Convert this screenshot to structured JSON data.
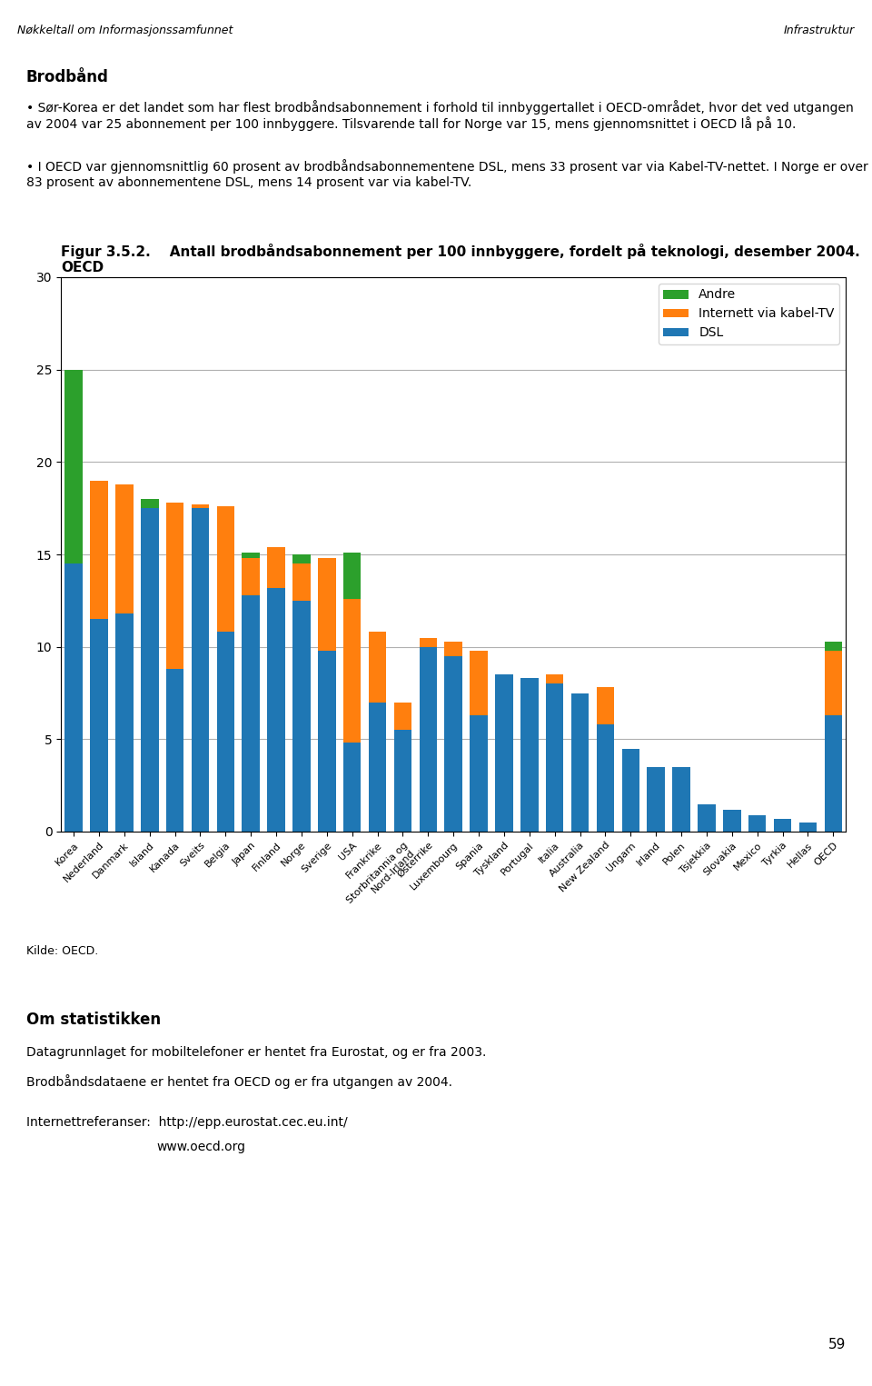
{
  "chart_data": {
    "type": "bar",
    "stacked": true,
    "title": "Figur 3.5.2.    Antall brodbåndsabonnement per 100 innbyggere, fordelt på teknologi, desember 2004.\nOECD",
    "categories": [
      "Korea",
      "Nederland",
      "Danmark",
      "Island",
      "Kanada",
      "Sveits",
      "Belgia",
      "Japan",
      "Finland",
      "Norge",
      "Sverige",
      "USA",
      "Frankrike",
      "Storbritannia og\nNord-Irland",
      "Østerrike",
      "Luxembourg",
      "Spania",
      "Tyskland",
      "Portugal",
      "Italia",
      "Australia",
      "New Zealand",
      "Ungarn",
      "Irland",
      "Polen",
      "Tsjekkia",
      "Slovakia",
      "Mexico",
      "Tyrkia",
      "Hellas",
      "OECD"
    ],
    "series": [
      {
        "name": "DSL",
        "values": [
          14.5,
          11.5,
          11.8,
          17.5,
          8.8,
          17.5,
          10.8,
          12.8,
          13.2,
          12.5,
          9.8,
          4.8,
          7.0,
          5.5,
          10.0,
          9.5,
          6.3,
          8.5,
          8.3,
          8.0,
          7.5,
          5.8,
          4.5,
          3.5,
          3.5,
          1.5,
          1.2,
          0.9,
          0.7,
          0.5,
          6.3
        ]
      },
      {
        "name": "Internett via kabel-TV",
        "values": [
          0.0,
          7.5,
          7.0,
          0.0,
          9.0,
          0.2,
          6.8,
          2.0,
          2.2,
          2.0,
          5.0,
          7.8,
          3.8,
          1.5,
          0.5,
          0.8,
          3.5,
          0.0,
          0.0,
          0.5,
          0.0,
          2.0,
          0.0,
          0.0,
          0.0,
          0.0,
          0.0,
          0.0,
          0.0,
          0.0,
          3.5
        ]
      },
      {
        "name": "Andre",
        "values": [
          10.5,
          0.0,
          0.0,
          0.5,
          0.0,
          0.0,
          0.0,
          0.3,
          0.0,
          0.5,
          0.0,
          2.5,
          0.0,
          0.0,
          0.0,
          0.0,
          0.0,
          0.0,
          0.0,
          0.0,
          0.0,
          0.0,
          0.0,
          0.0,
          0.0,
          0.0,
          0.0,
          0.0,
          0.0,
          0.0,
          0.5
        ]
      }
    ],
    "ylim": [
      0,
      30
    ],
    "yticks": [
      0,
      5,
      10,
      15,
      20,
      25,
      30
    ],
    "grid": true,
    "legend": "upper right",
    "annotations": [
      "Nøkkeltall om Informasjonssamfunnet",
      "Infrastruktur",
      "Brodbånd",
      "• Sør-Korea er det landet som har flest brodbåndsabonnement i forhold til innbyggertallet i OECD-området, hvor det ved utgangen av 2004 var 25 abonnement per 100 innbyggere. Tilsvarende tall for Norge var 15, mens gjennomsnittet i OECD lå på 10.",
      "• I OECD var gjennomsnittlig 60 prosent av brodbåndsabonnementene DSL, mens 33 prosent var via Kabel-TV-nettet. I Norge er over 83 prosent av abonnementene DSL, mens 14 prosent var via kabel-TV.",
      "Kilde: OECD.",
      "Om statistikken",
      "Datagrunnlaget for mobiltelefoner er hentet fra Eurostat, og er fra 2003.",
      "Brodbåndsdataene er hentet fra OECD og er fra utgangen av 2004.",
      "Internettreferanser:  http://epp.eurostat.cec.eu.int/",
      "www.oecd.org",
      "59"
    ]
  }
}
